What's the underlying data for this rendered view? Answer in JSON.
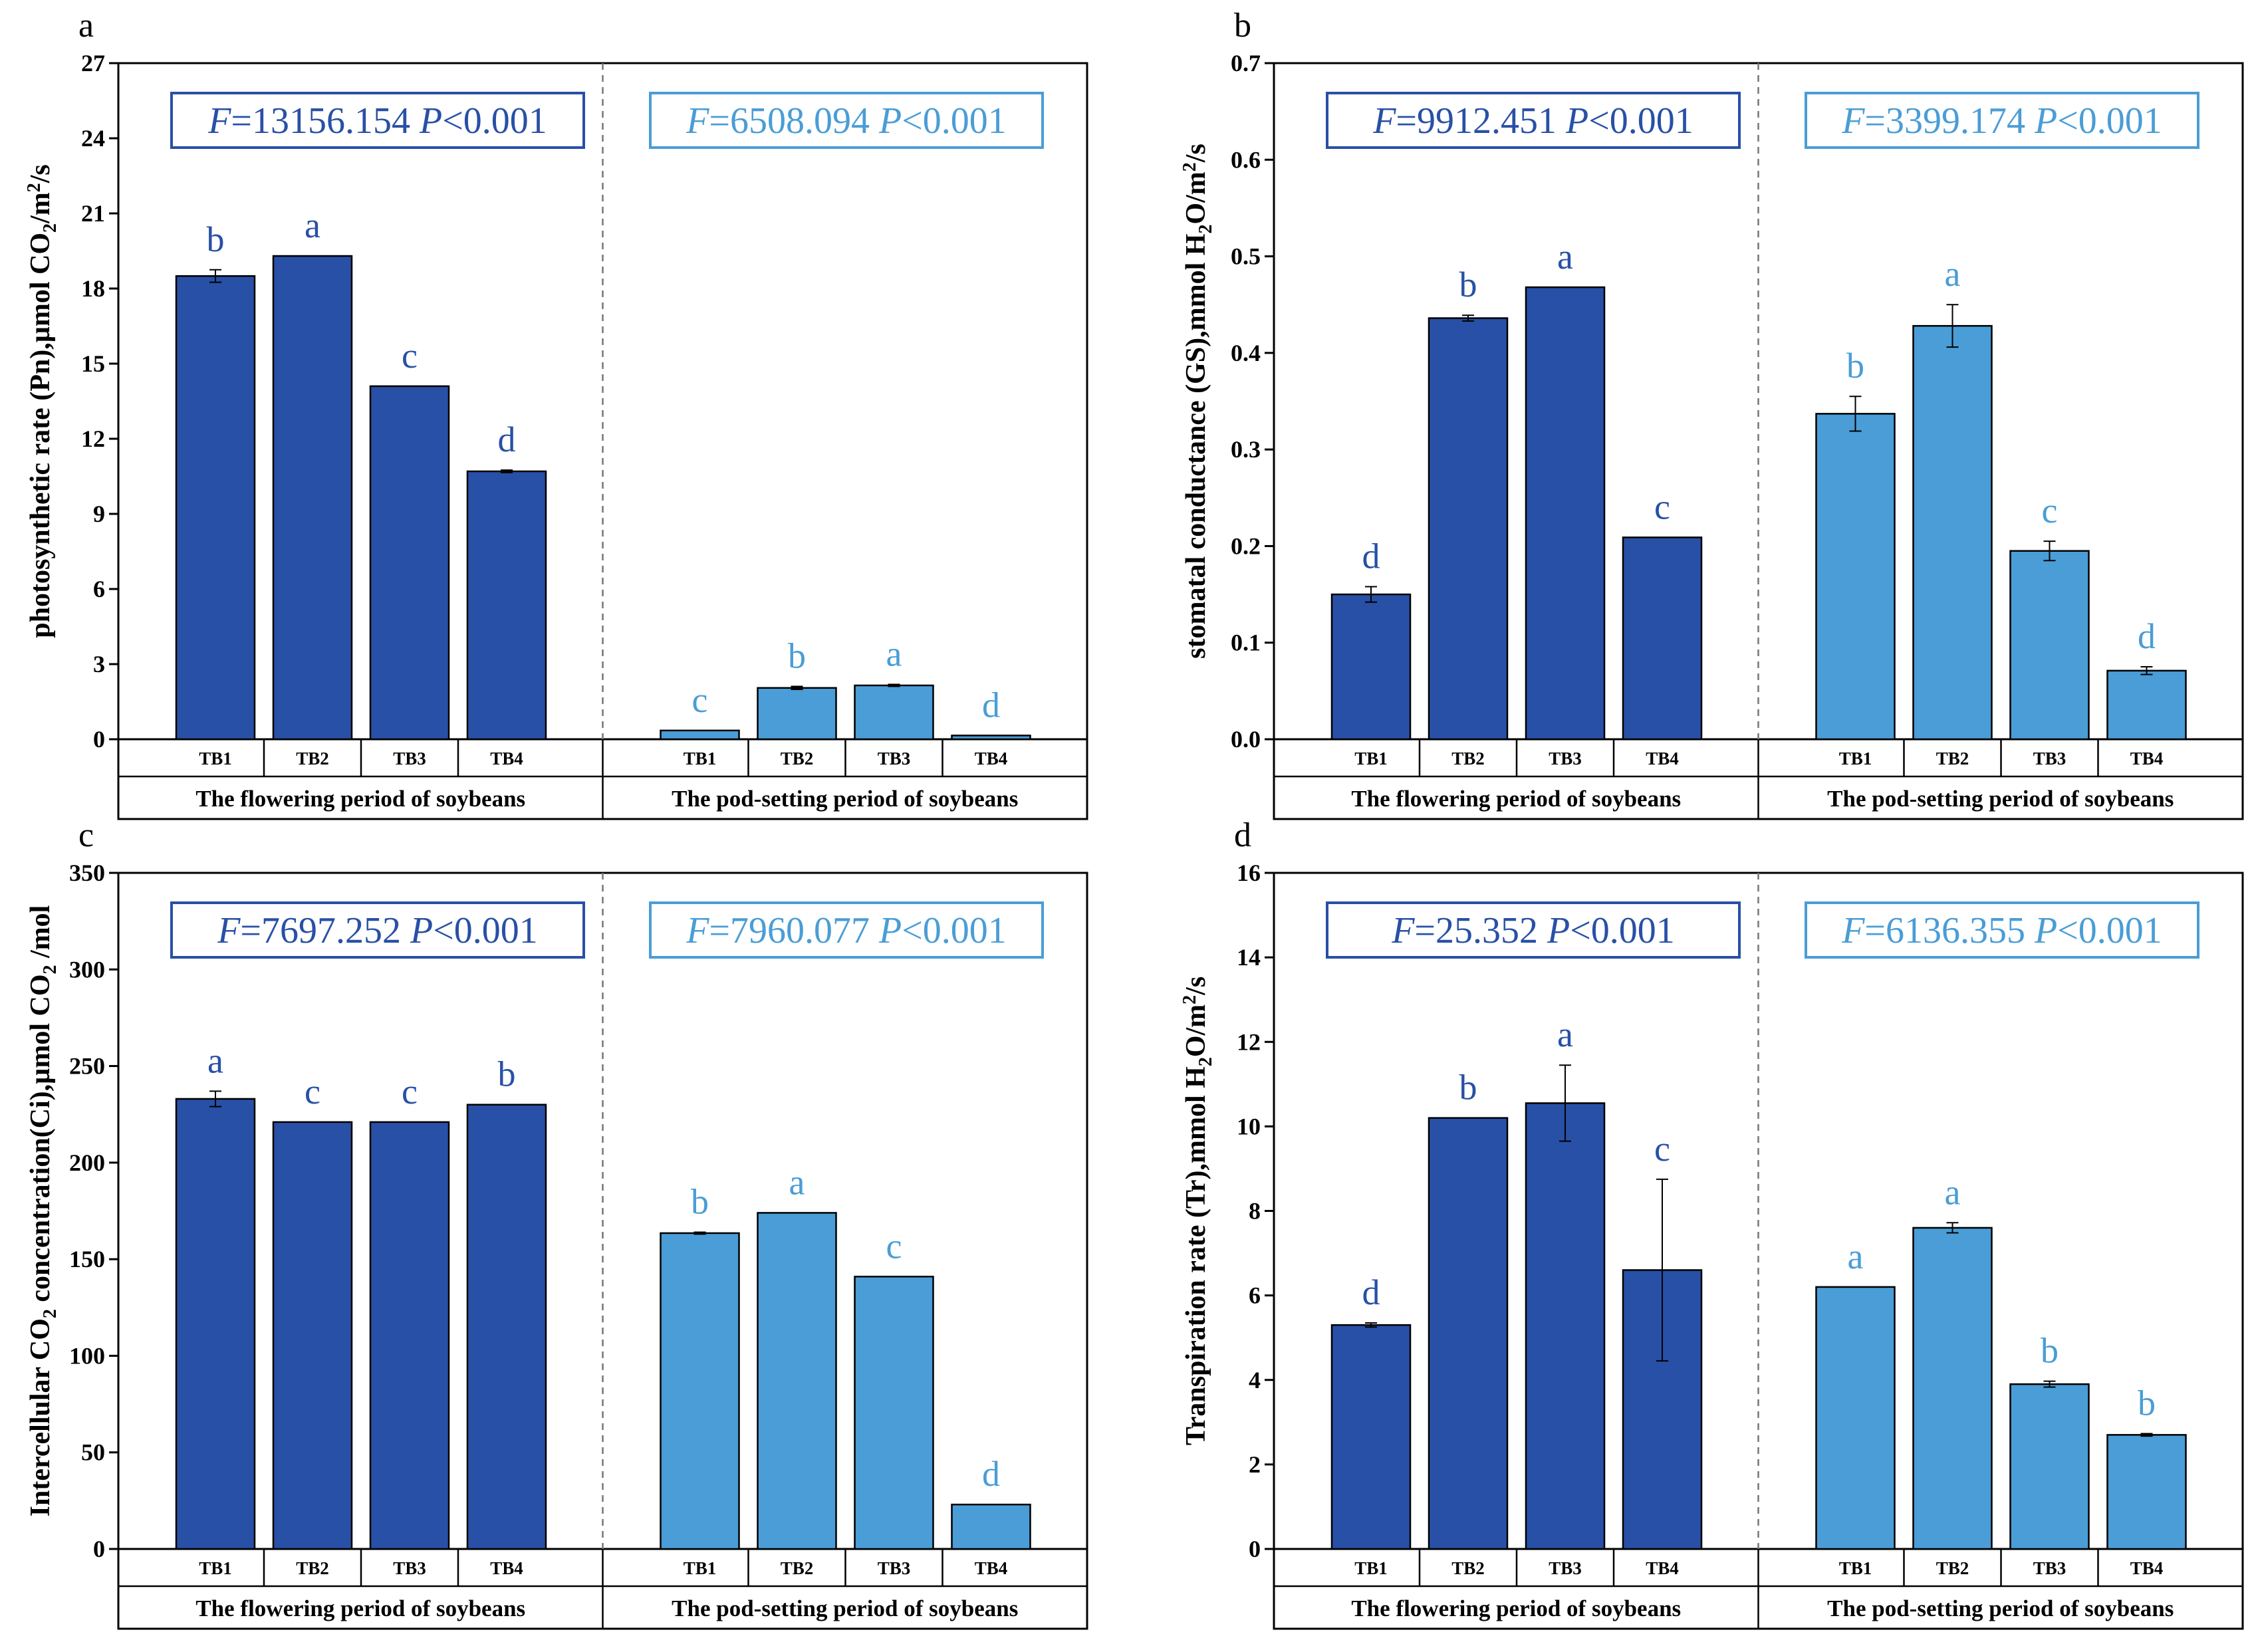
{
  "colors": {
    "flowering": "#2850a6",
    "podsetting": "#4a9dd6",
    "axis": "#000000"
  },
  "chart_data": [
    {
      "panel_label": "a",
      "type": "bar",
      "ylabel_parts": [
        "photosynthetic rate (Pn),µmol CO",
        "2",
        "/m",
        "2",
        "/s"
      ],
      "ylim": [
        0,
        27
      ],
      "yticks": [
        0,
        3,
        6,
        9,
        12,
        15,
        18,
        21,
        24,
        27
      ],
      "ytick_labels": [
        "0",
        "3",
        "6",
        "9",
        "12",
        "15",
        "18",
        "21",
        "24",
        "27"
      ],
      "categories": [
        "TB1",
        "TB2",
        "TB3",
        "TB4"
      ],
      "groups": [
        {
          "name": "The flowering period of soybeans",
          "stat_f": "=13156.154",
          "stat_p": "<0.001",
          "values": [
            18.5,
            19.3,
            14.1,
            10.7
          ],
          "errors": [
            0.25,
            0.0,
            0.0,
            0.05
          ],
          "letters": [
            "b",
            "a",
            "c",
            "d"
          ]
        },
        {
          "name": "The pod-setting period of soybeans",
          "stat_f": "=6508.094",
          "stat_p": "<0.001",
          "values": [
            0.35,
            2.05,
            2.15,
            0.15
          ],
          "errors": [
            0.0,
            0.06,
            0.04,
            0.0
          ],
          "letters": [
            "c",
            "b",
            "a",
            "d"
          ]
        }
      ]
    },
    {
      "panel_label": "b",
      "type": "bar",
      "ylabel_parts": [
        "stomatal conductance (GS),mmol H",
        "2",
        "O/m",
        "2",
        "/s"
      ],
      "ylim": [
        0,
        0.7
      ],
      "yticks": [
        0,
        0.1,
        0.2,
        0.3,
        0.4,
        0.5,
        0.6,
        0.7
      ],
      "ytick_labels": [
        "0.0",
        "0.1",
        "0.2",
        "0.3",
        "0.4",
        "0.5",
        "0.6",
        "0.7"
      ],
      "categories": [
        "TB1",
        "TB2",
        "TB3",
        "TB4"
      ],
      "groups": [
        {
          "name": "The flowering period of soybeans",
          "stat_f": "=9912.451",
          "stat_p": "<0.001",
          "values": [
            0.15,
            0.436,
            0.468,
            0.209
          ],
          "errors": [
            0.008,
            0.003,
            0.0,
            0.0
          ],
          "letters": [
            "d",
            "b",
            "a",
            "c"
          ]
        },
        {
          "name": "The pod-setting period of soybeans",
          "stat_f": "=3399.174",
          "stat_p": "<0.001",
          "values": [
            0.337,
            0.428,
            0.195,
            0.071
          ],
          "errors": [
            0.018,
            0.022,
            0.01,
            0.004
          ],
          "letters": [
            "b",
            "a",
            "c",
            "d"
          ]
        }
      ]
    },
    {
      "panel_label": "c",
      "type": "bar",
      "ylabel_parts": [
        "Intercellular CO",
        "2",
        " concentration(Ci),µmol CO",
        "2",
        " /mol"
      ],
      "ylim": [
        0,
        350
      ],
      "yticks": [
        0,
        50,
        100,
        150,
        200,
        250,
        300,
        350
      ],
      "ytick_labels": [
        "0",
        "50",
        "100",
        "150",
        "200",
        "250",
        "300",
        "350"
      ],
      "categories": [
        "TB1",
        "TB2",
        "TB3",
        "TB4"
      ],
      "groups": [
        {
          "name": "The flowering period of soybeans",
          "stat_f": "=7697.252",
          "stat_p": "<0.001",
          "values": [
            233,
            221,
            221,
            230
          ],
          "errors": [
            4,
            0,
            0,
            0
          ],
          "letters": [
            "a",
            "c",
            "c",
            "b"
          ]
        },
        {
          "name": "The pod-setting period of soybeans",
          "stat_f": "=7960.077",
          "stat_p": "<0.001",
          "values": [
            163.5,
            174,
            141,
            23
          ],
          "errors": [
            0.5,
            0,
            0,
            0
          ],
          "letters": [
            "b",
            "a",
            "c",
            "d"
          ]
        }
      ]
    },
    {
      "panel_label": "d",
      "type": "bar",
      "ylabel_parts": [
        "Transpiration rate (Tr),mmol H",
        "2",
        "O/m",
        "2",
        "/s"
      ],
      "ylim": [
        0,
        16
      ],
      "yticks": [
        0,
        2,
        4,
        6,
        8,
        10,
        12,
        14,
        16
      ],
      "ytick_labels": [
        "0",
        "2",
        "4",
        "6",
        "8",
        "10",
        "12",
        "14",
        "16"
      ],
      "categories": [
        "TB1",
        "TB2",
        "TB3",
        "TB4"
      ],
      "groups": [
        {
          "name": "The flowering period of soybeans",
          "stat_f": "=25.352",
          "stat_p": "<0.001",
          "values": [
            5.3,
            10.2,
            10.55,
            6.6
          ],
          "errors": [
            0.05,
            0.0,
            0.9,
            2.15
          ],
          "letters": [
            "d",
            "b",
            "a",
            "c"
          ]
        },
        {
          "name": "The pod-setting period of soybeans",
          "stat_f": "=6136.355",
          "stat_p": "<0.001",
          "values": [
            6.2,
            7.6,
            3.9,
            2.7
          ],
          "errors": [
            0.0,
            0.12,
            0.07,
            0.03
          ],
          "letters": [
            "a",
            "a",
            "b",
            "b"
          ]
        }
      ]
    }
  ]
}
